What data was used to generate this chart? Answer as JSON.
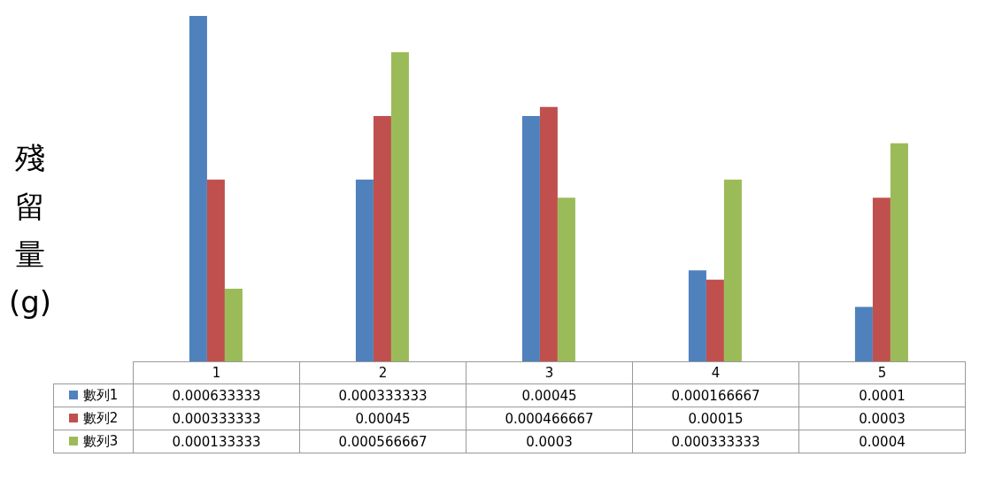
{
  "chart_data": {
    "type": "bar",
    "ylabel": "殘留量(g)",
    "categories": [
      "1",
      "2",
      "3",
      "4",
      "5"
    ],
    "series": [
      {
        "name": "數列1",
        "color": "#4f81bd",
        "values": [
          0.000633333,
          0.000333333,
          0.00045,
          0.000166667,
          0.0001
        ]
      },
      {
        "name": "數列2",
        "color": "#c0504d",
        "values": [
          0.000333333,
          0.00045,
          0.000466667,
          0.00015,
          0.0003
        ]
      },
      {
        "name": "數列3",
        "color": "#9bbb59",
        "values": [
          0.000133333,
          0.000566667,
          0.0003,
          0.000333333,
          0.0004
        ]
      }
    ],
    "data_labels": true,
    "tick_labels": false,
    "legend": "bottom left"
  }
}
